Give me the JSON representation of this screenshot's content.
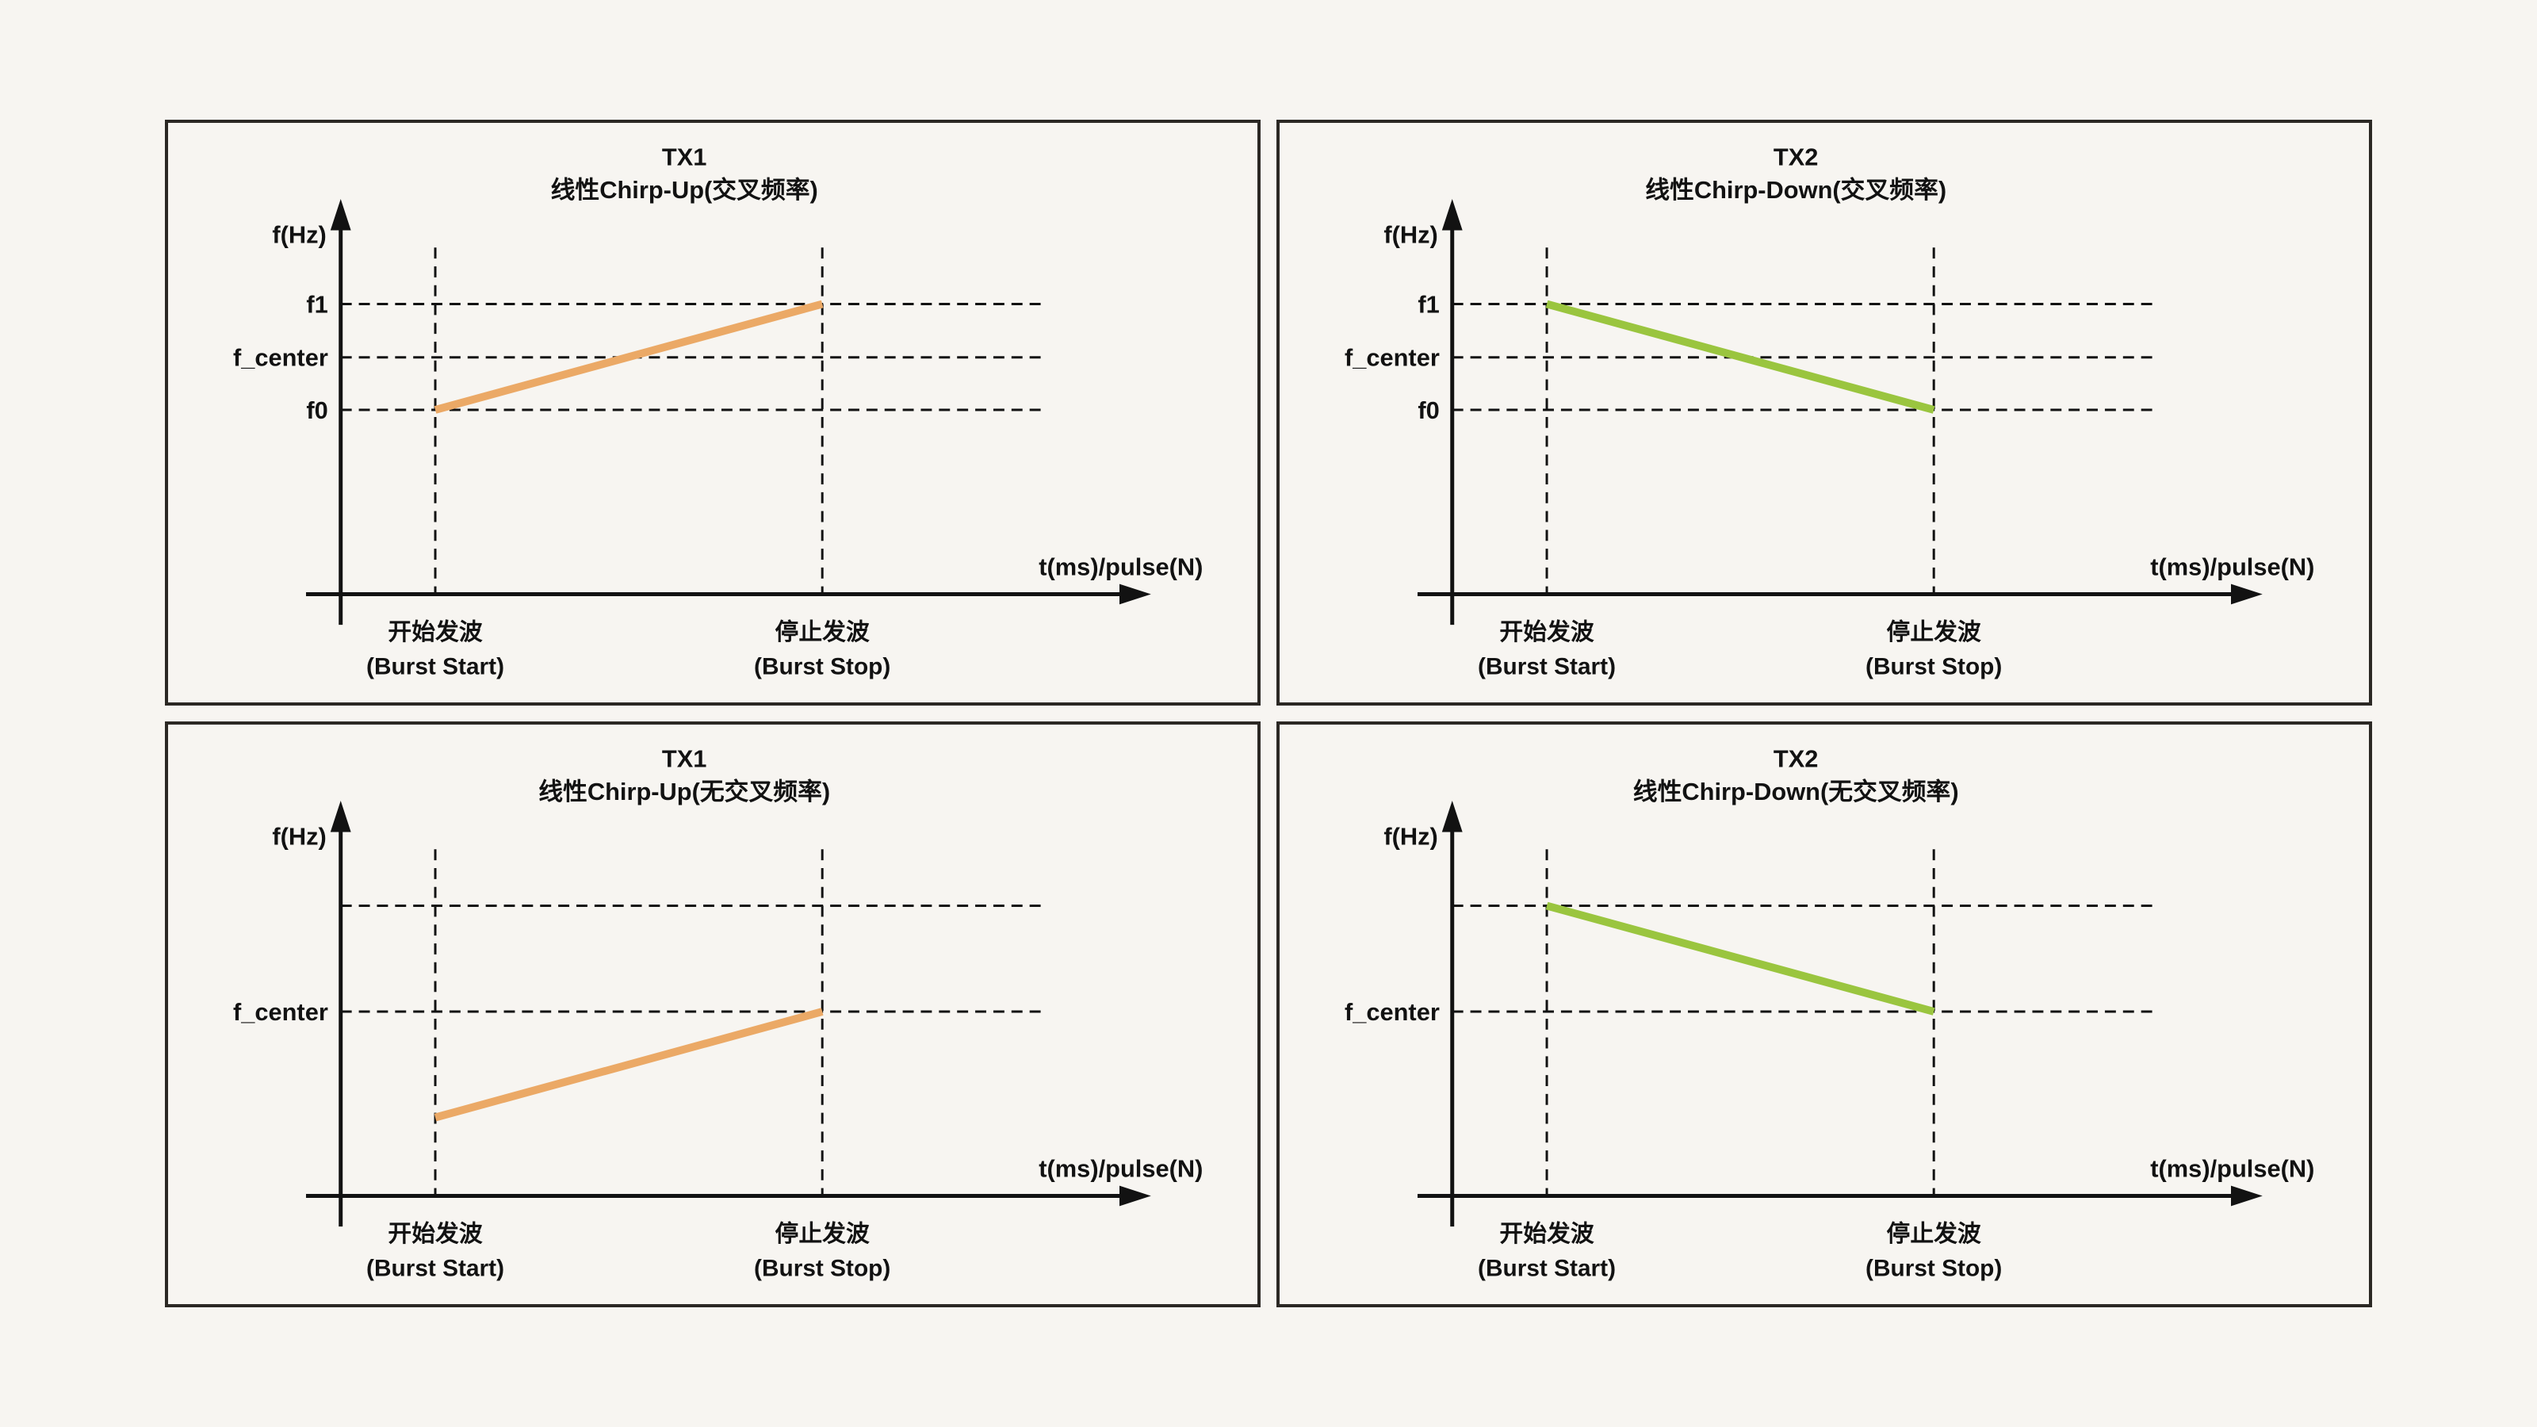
{
  "page": {
    "background": "#F7F5F1",
    "description_labels": {
      "y_axis": "f(Hz)",
      "x_axis": "t(ms)/pulse(N)"
    }
  },
  "colors": {
    "orange": "#EBA966",
    "green": "#9AC53F",
    "ink": "#121212",
    "panel_border": "#2B2824",
    "panel_background": "#F7F5F1"
  },
  "axis": {
    "y_label": "f(Hz)",
    "x_label": "t(ms)/pulse(N)"
  },
  "x_ticks": [
    {
      "zh": "开始发波",
      "en": "(Burst Start)",
      "position": "burst_start"
    },
    {
      "zh": "停止发波",
      "en": "(Burst Stop)",
      "position": "burst_stop"
    }
  ],
  "panels": [
    {
      "id": "tx1-crossed",
      "title_line1": "TX1",
      "title_line2": "线性Chirp-Up(交叉频率)",
      "color": "orange",
      "direction": "up",
      "gridlines": [
        "high",
        "mid",
        "low"
      ],
      "y_ticks": [
        {
          "label": "f1",
          "level": "high"
        },
        {
          "label": "f_center",
          "level": "mid"
        },
        {
          "label": "f0",
          "level": "low"
        }
      ],
      "line": {
        "from_x": "burst_start",
        "from_level": "low",
        "to_x": "burst_stop",
        "to_level": "high",
        "semantic": "frequency sweeps up from f0 at burst start to f1 at burst stop"
      }
    },
    {
      "id": "tx2-crossed",
      "title_line1": "TX2",
      "title_line2": "线性Chirp-Down(交叉频率)",
      "color": "green",
      "direction": "down",
      "gridlines": [
        "high",
        "mid",
        "low"
      ],
      "y_ticks": [
        {
          "label": "f1",
          "level": "high"
        },
        {
          "label": "f_center",
          "level": "mid"
        },
        {
          "label": "f0",
          "level": "low"
        }
      ],
      "line": {
        "from_x": "burst_start",
        "from_level": "high",
        "to_x": "burst_stop",
        "to_level": "low",
        "semantic": "frequency sweeps down from f1 at burst start to f0 at burst stop"
      }
    },
    {
      "id": "tx1-noncrossed",
      "title_line1": "TX1",
      "title_line2": "线性Chirp-Up(无交叉频率)",
      "color": "orange",
      "direction": "up",
      "gridlines": [
        "high",
        "low"
      ],
      "y_ticks": [
        {
          "label": "f_center",
          "level": "low"
        }
      ],
      "line": {
        "from_x": "burst_start",
        "from_level": "sub",
        "to_x": "burst_stop",
        "to_level": "low",
        "semantic": "frequency sweeps up from below f_center at burst start to f_center at burst stop"
      }
    },
    {
      "id": "tx2-noncrossed",
      "title_line1": "TX2",
      "title_line2": "线性Chirp-Down(无交叉频率)",
      "color": "green",
      "direction": "down",
      "gridlines": [
        "high",
        "low"
      ],
      "y_ticks": [
        {
          "label": "f_center",
          "level": "low"
        }
      ],
      "line": {
        "from_x": "burst_start",
        "from_level": "high",
        "to_x": "burst_stop",
        "to_level": "low",
        "semantic": "frequency sweeps down from above f_center at burst start to f_center at burst stop"
      }
    }
  ]
}
